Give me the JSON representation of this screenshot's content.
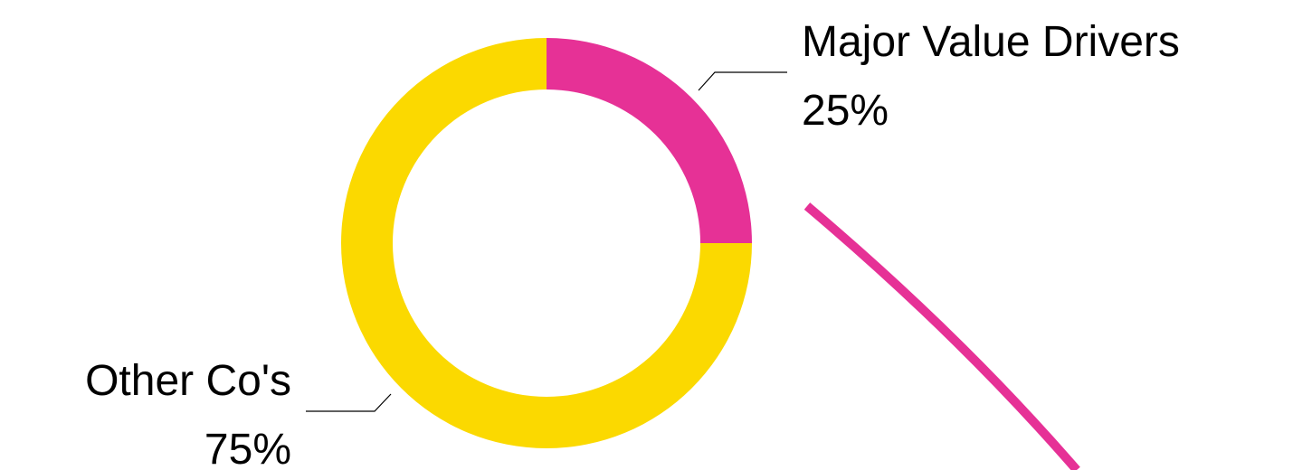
{
  "chart_data": {
    "type": "donut",
    "categories": [
      "Major Value Drivers",
      "Other Co's"
    ],
    "values": [
      25,
      75
    ],
    "value_labels": [
      "25%",
      "75%"
    ],
    "colors": [
      "#e63196",
      "#fbd900"
    ]
  }
}
